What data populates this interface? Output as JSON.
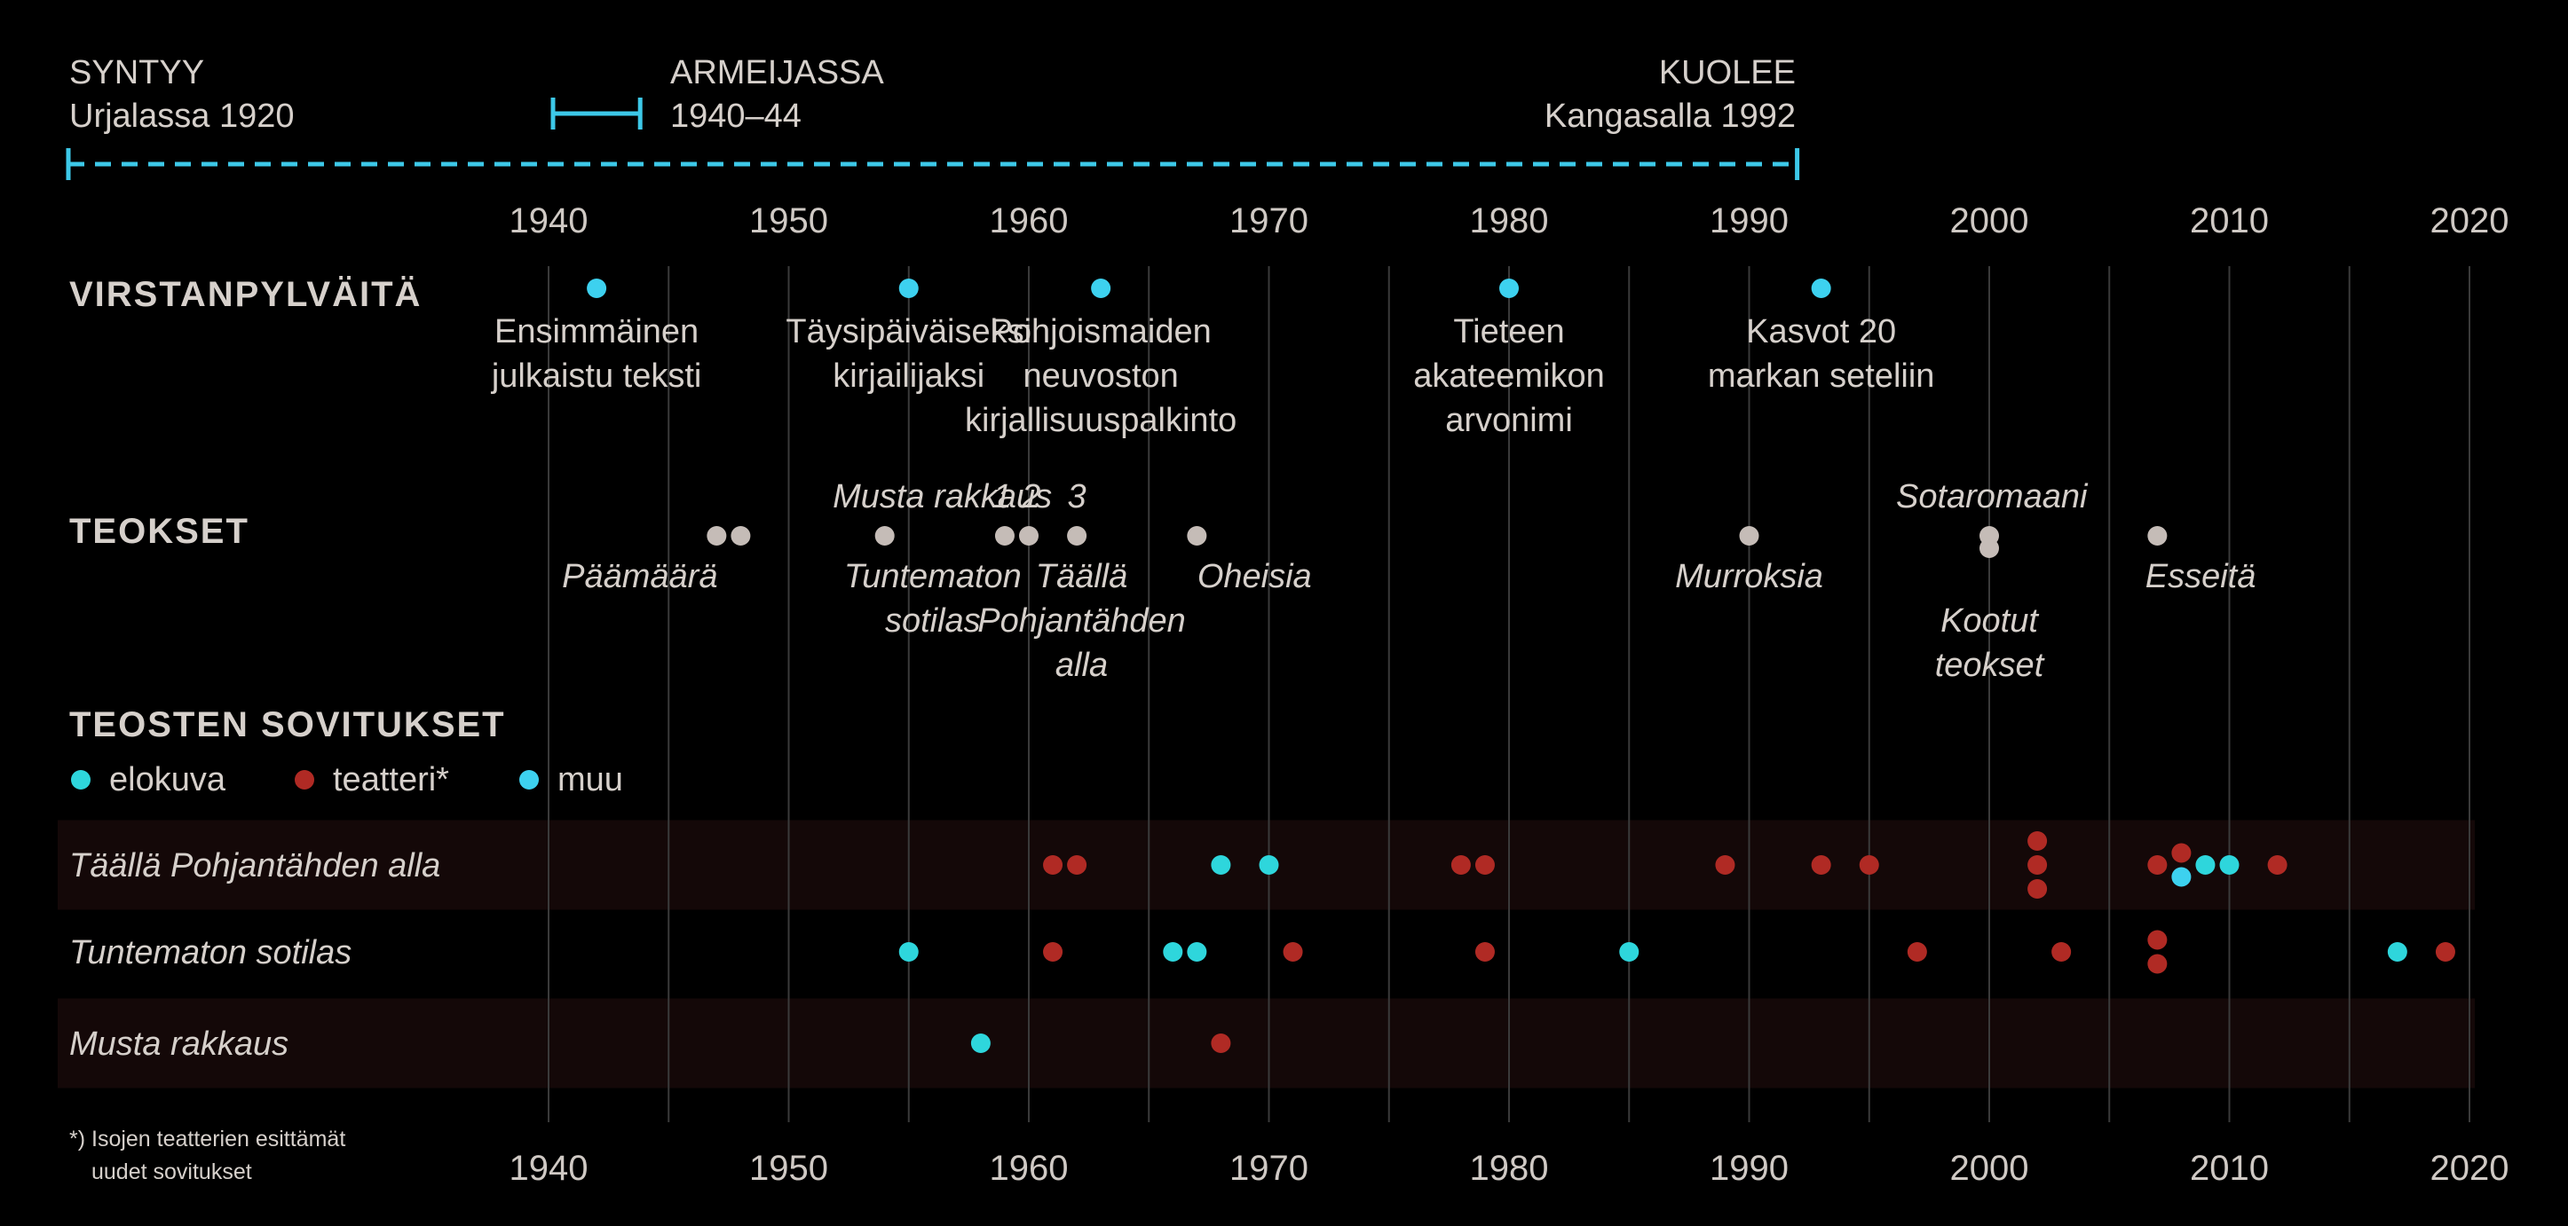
{
  "chart_data": {
    "type": "scatter",
    "x_range": [
      1934,
      2021
    ],
    "ticks": [
      1940,
      1950,
      1960,
      1970,
      1980,
      1990,
      2000,
      2010,
      2020
    ],
    "gridlines": [
      1940,
      1945,
      1950,
      1955,
      1960,
      1965,
      1970,
      1975,
      1980,
      1985,
      1990,
      1995,
      2000,
      2005,
      2010,
      2015,
      2020
    ],
    "colors": {
      "life": "#3dc8e8",
      "milestone": "#3dd1ef",
      "work": "#c5bcb7",
      "elokuva": "#2ed6dc",
      "teatteri": "#b02a24",
      "muu": "#3dd1ef",
      "band": "#140808",
      "grid": "#3a3a3a"
    },
    "lifeline": {
      "born": {
        "title": "SYNTYY",
        "text": "Urjalassa 1920",
        "year": 1920
      },
      "army": {
        "title": "ARMEIJASSA",
        "text": "1940–44",
        "start": 1940,
        "end": 1944
      },
      "died": {
        "title": "KUOLEE",
        "text": "Kangasalla 1992",
        "year": 1992
      }
    },
    "milestones": {
      "title": "VIRSTANPYLVÄITÄ",
      "items": [
        {
          "year": 1942,
          "lines": [
            "Ensimmäinen",
            "julkaistu teksti"
          ]
        },
        {
          "year": 1955,
          "lines": [
            "Täysipäiväiseksi",
            "kirjailijaksi"
          ]
        },
        {
          "year": 1963,
          "lines": [
            "Pohjoismaiden",
            "neuvoston",
            "kirjallisuuspalkinto"
          ]
        },
        {
          "year": 1980,
          "lines": [
            "Tieteen",
            "akateemikon",
            "arvonimi"
          ]
        },
        {
          "year": 1993,
          "lines": [
            "Kasvot 20",
            "markan seteliin"
          ]
        }
      ]
    },
    "works": {
      "title": "TEOKSET",
      "points": [
        {
          "year": 1947,
          "stack": 0
        },
        {
          "year": 1948,
          "stack": 0
        },
        {
          "year": 1954,
          "stack": 0
        },
        {
          "year": 1959,
          "stack": 0
        },
        {
          "year": 1960,
          "stack": 0
        },
        {
          "year": 1962,
          "stack": 0
        },
        {
          "year": 1967,
          "stack": 0
        },
        {
          "year": 1990,
          "stack": 0
        },
        {
          "year": 2000,
          "stack": 0
        },
        {
          "year": 2000,
          "stack": 1
        },
        {
          "year": 2007,
          "stack": 0
        }
      ],
      "labels": [
        {
          "text": "Musta rakkaus",
          "year": 1956.4,
          "pos": "above",
          "line": 0
        },
        {
          "text": "1",
          "year": 1958.9,
          "pos": "above",
          "line": 0
        },
        {
          "text": "2",
          "year": 1960.1,
          "pos": "above",
          "line": 0
        },
        {
          "text": "3",
          "year": 1962,
          "pos": "above",
          "line": 0
        },
        {
          "text": "Sotaromaani",
          "year": 2000.1,
          "pos": "above",
          "line": 0
        },
        {
          "text": "Päämäärä",
          "year": 1943.8,
          "pos": "below",
          "line": 0
        },
        {
          "text": "Tuntematon",
          "year": 1956,
          "pos": "below",
          "line": 0
        },
        {
          "text": "sotilas",
          "year": 1956,
          "pos": "below",
          "line": 1
        },
        {
          "text": "Täällä",
          "year": 1962.2,
          "pos": "below",
          "line": 0
        },
        {
          "text": "Pohjantähden",
          "year": 1962.2,
          "pos": "below",
          "line": 1
        },
        {
          "text": "alla",
          "year": 1962.2,
          "pos": "below",
          "line": 2
        },
        {
          "text": "Oheisia",
          "year": 1969.4,
          "pos": "below",
          "line": 0
        },
        {
          "text": "Murroksia",
          "year": 1990,
          "pos": "below",
          "line": 0
        },
        {
          "text": "Kootut",
          "year": 2000,
          "pos": "below",
          "line": 1
        },
        {
          "text": "teokset",
          "year": 2000,
          "pos": "below",
          "line": 2
        },
        {
          "text": "Esseitä",
          "year": 2008.8,
          "pos": "below",
          "line": 0
        }
      ]
    },
    "adaptations": {
      "title": "TEOSTEN SOVITUKSET",
      "legend": [
        {
          "key": "elokuva",
          "label": "elokuva"
        },
        {
          "key": "teatteri",
          "label": "teatteri*"
        },
        {
          "key": "muu",
          "label": "muu"
        }
      ],
      "series": [
        {
          "name": "Täällä Pohjantähden alla",
          "points": [
            {
              "year": 1961,
              "type": "teatteri",
              "offset": 0
            },
            {
              "year": 1962,
              "type": "teatteri",
              "offset": 0
            },
            {
              "year": 1968,
              "type": "elokuva",
              "offset": 0
            },
            {
              "year": 1970,
              "type": "elokuva",
              "offset": 0
            },
            {
              "year": 1978,
              "type": "teatteri",
              "offset": 0
            },
            {
              "year": 1979,
              "type": "teatteri",
              "offset": 0
            },
            {
              "year": 1989,
              "type": "teatteri",
              "offset": 0
            },
            {
              "year": 1993,
              "type": "teatteri",
              "offset": 0
            },
            {
              "year": 1995,
              "type": "teatteri",
              "offset": 0
            },
            {
              "year": 2002,
              "type": "teatteri",
              "offset": -1
            },
            {
              "year": 2002,
              "type": "teatteri",
              "offset": 0
            },
            {
              "year": 2002,
              "type": "teatteri",
              "offset": 1
            },
            {
              "year": 2007,
              "type": "teatteri",
              "offset": 0
            },
            {
              "year": 2008,
              "type": "teatteri",
              "offset": -0.5
            },
            {
              "year": 2008,
              "type": "muu",
              "offset": 0.5
            },
            {
              "year": 2009,
              "type": "elokuva",
              "offset": 0
            },
            {
              "year": 2010,
              "type": "elokuva",
              "offset": 0
            },
            {
              "year": 2012,
              "type": "teatteri",
              "offset": 0
            }
          ]
        },
        {
          "name": "Tuntematon sotilas",
          "points": [
            {
              "year": 1955,
              "type": "elokuva",
              "offset": 0
            },
            {
              "year": 1961,
              "type": "teatteri",
              "offset": 0
            },
            {
              "year": 1966,
              "type": "elokuva",
              "offset": 0
            },
            {
              "year": 1967,
              "type": "elokuva",
              "offset": 0
            },
            {
              "year": 1971,
              "type": "teatteri",
              "offset": 0
            },
            {
              "year": 1979,
              "type": "teatteri",
              "offset": 0
            },
            {
              "year": 1985,
              "type": "elokuva",
              "offset": 0
            },
            {
              "year": 1997,
              "type": "teatteri",
              "offset": 0
            },
            {
              "year": 2003,
              "type": "teatteri",
              "offset": 0
            },
            {
              "year": 2007,
              "type": "teatteri",
              "offset": -0.5
            },
            {
              "year": 2007,
              "type": "teatteri",
              "offset": 0.5
            },
            {
              "year": 2017,
              "type": "elokuva",
              "offset": 0
            },
            {
              "year": 2019,
              "type": "teatteri",
              "offset": 0
            }
          ]
        },
        {
          "name": "Musta rakkaus",
          "points": [
            {
              "year": 1958,
              "type": "elokuva",
              "offset": 0
            },
            {
              "year": 1968,
              "type": "teatteri",
              "offset": 0
            }
          ]
        }
      ]
    },
    "footnote": [
      "*) Isojen teatterien esittämät",
      "uudet sovitukset"
    ]
  }
}
